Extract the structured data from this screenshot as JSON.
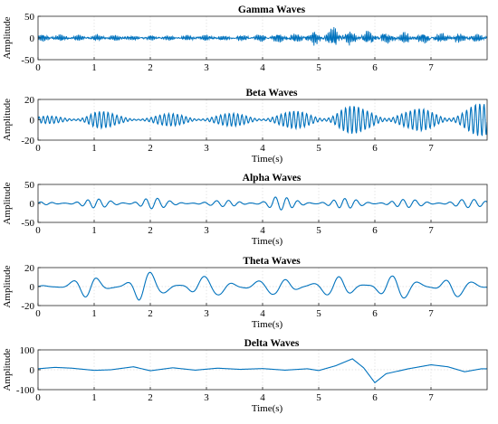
{
  "colors": {
    "line": "#0072BD",
    "axis": "#262626",
    "grid": "#dcdcdc",
    "background": "#ffffff"
  },
  "chart_data": [
    {
      "type": "line",
      "title": "Gamma Waves",
      "xlabel": "",
      "ylabel": "Amplitude",
      "xlim": [
        0,
        8
      ],
      "ylim": [
        -50,
        50
      ],
      "xticks": [
        "0",
        "1",
        "2",
        "3",
        "4",
        "5",
        "6",
        "7"
      ],
      "yticks": [
        "50",
        "0",
        "-50"
      ],
      "ytick_values": [
        50,
        0,
        -50
      ],
      "grid": true,
      "series": [
        {
          "x": [
            0.2,
            0.6,
            1.0,
            1.6,
            2.2,
            2.8,
            3.4,
            4.0,
            4.6,
            4.9,
            5.2,
            5.3,
            5.5,
            5.8,
            6.0,
            6.4,
            6.8,
            7.2,
            7.6,
            7.9
          ],
          "y": [
            8,
            6,
            7,
            6,
            5,
            6,
            6,
            8,
            10,
            14,
            18,
            22,
            16,
            14,
            15,
            12,
            11,
            10,
            10,
            8
          ],
          "frequency_hz": 38
        }
      ]
    },
    {
      "type": "line",
      "title": "Beta Waves",
      "xlabel": "Time(s)",
      "ylabel": "Amplitude",
      "xlim": [
        0,
        8
      ],
      "ylim": [
        -20,
        20
      ],
      "xticks": [
        "0",
        "1",
        "2",
        "3",
        "4",
        "5",
        "6",
        "7"
      ],
      "yticks": [
        "20",
        "0",
        "-20"
      ],
      "ytick_values": [
        20,
        0,
        -20
      ],
      "grid": true,
      "series": [
        {
          "x": [
            0.0,
            0.4,
            0.8,
            1.0,
            1.4,
            2.0,
            2.6,
            3.2,
            3.8,
            4.4,
            4.9,
            5.1,
            5.4,
            5.8,
            6.2,
            6.6,
            7.0,
            7.4,
            7.8
          ],
          "y": [
            3,
            5,
            8,
            10,
            6,
            5,
            7,
            6,
            7,
            8,
            10,
            12,
            16,
            12,
            14,
            10,
            12,
            14,
            16
          ],
          "frequency_hz": 13
        }
      ]
    },
    {
      "type": "line",
      "title": "Alpha Waves",
      "xlabel": "Time(s)",
      "ylabel": "Amplitude",
      "xlim": [
        0,
        8
      ],
      "ylim": [
        -50,
        50
      ],
      "xticks": [
        "0",
        "1",
        "2",
        "3",
        "4",
        "5",
        "6",
        "7"
      ],
      "yticks": [
        "50",
        "0",
        "-50"
      ],
      "ytick_values": [
        50,
        0,
        -50
      ],
      "grid": true,
      "series": [
        {
          "x": [
            0.0,
            0.5,
            1.0,
            1.5,
            1.9,
            2.4,
            3.0,
            3.5,
            4.0,
            4.2,
            4.6,
            5.0,
            5.5,
            6.0,
            6.5,
            7.0,
            7.5,
            7.9
          ],
          "y": [
            4,
            8,
            12,
            10,
            18,
            8,
            6,
            10,
            12,
            20,
            12,
            11,
            13,
            10,
            11,
            9,
            12,
            10
          ],
          "frequency_hz": 4.8
        }
      ]
    },
    {
      "type": "line",
      "title": "Theta Waves",
      "xlabel": "Time(s)",
      "ylabel": "Amplitude",
      "xlim": [
        0,
        8
      ],
      "ylim": [
        -20,
        20
      ],
      "xticks": [
        "0",
        "1",
        "2",
        "3",
        "4",
        "5",
        "6",
        "7"
      ],
      "yticks": [
        "20",
        "0",
        "-20"
      ],
      "ytick_values": [
        20,
        0,
        -20
      ],
      "grid": true,
      "series": [
        {
          "x": [
            0.0,
            0.3,
            0.7,
            1.0,
            1.3,
            1.8,
            2.2,
            2.7,
            3.2,
            3.7,
            4.2,
            4.7,
            5.2,
            5.7,
            6.0,
            6.3,
            6.7,
            7.0,
            7.4,
            7.9
          ],
          "y": [
            2,
            4,
            10,
            12,
            8,
            18,
            12,
            14,
            10,
            12,
            8,
            14,
            10,
            12,
            18,
            12,
            14,
            10,
            12,
            4
          ],
          "frequency_hz": 2.1
        }
      ]
    },
    {
      "type": "line",
      "title": "Delta Waves",
      "xlabel": "Time(s)",
      "ylabel": "Amplitude",
      "xlim": [
        0,
        8
      ],
      "ylim": [
        -100,
        100
      ],
      "xticks": [
        "0",
        "1",
        "2",
        "3",
        "4",
        "5",
        "6",
        "7"
      ],
      "yticks": [
        "100",
        "0",
        "-100"
      ],
      "ytick_values": [
        100,
        0,
        -100
      ],
      "grid": true,
      "series": [
        {
          "x": [
            0.0,
            0.3,
            0.6,
            1.0,
            1.3,
            1.7,
            2.0,
            2.4,
            2.8,
            3.2,
            3.6,
            4.0,
            4.4,
            4.8,
            5.0,
            5.3,
            5.6,
            5.8,
            6.0,
            6.2,
            6.6,
            7.0,
            7.3,
            7.6,
            7.9
          ],
          "y": [
            5,
            12,
            8,
            -3,
            0,
            15,
            -5,
            10,
            -2,
            8,
            2,
            6,
            -2,
            5,
            -4,
            20,
            55,
            10,
            -65,
            -20,
            5,
            25,
            15,
            -10,
            5
          ],
          "frequency_hz": 0
        }
      ]
    }
  ]
}
